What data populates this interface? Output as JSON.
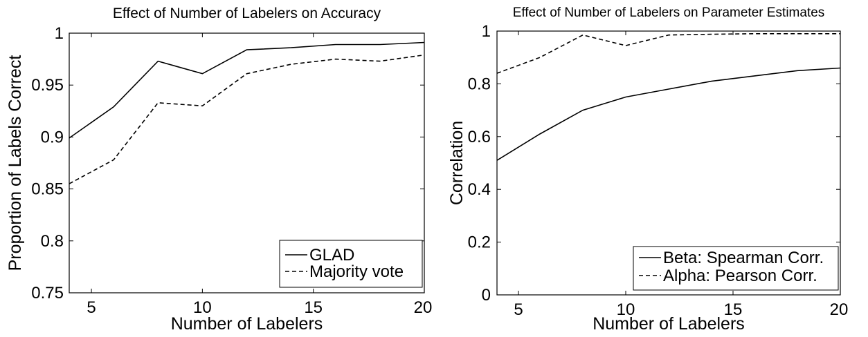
{
  "chart_data": [
    {
      "type": "line",
      "title": "Effect of Number of Labelers on Accuracy",
      "xlabel": "Number of Labelers",
      "ylabel": "Proportion of Labels Correct",
      "xlim": [
        4,
        20
      ],
      "ylim": [
        0.75,
        1.0
      ],
      "xticks": [
        5,
        10,
        15,
        20
      ],
      "yticks": [
        0.75,
        0.8,
        0.85,
        0.9,
        0.95,
        1
      ],
      "ytick_labels": [
        "0.75",
        "0.8",
        "0.85",
        "0.9",
        "0.95",
        "1"
      ],
      "x": [
        4,
        6,
        8,
        10,
        12,
        14,
        16,
        18,
        20
      ],
      "series": [
        {
          "name": "GLAD",
          "style": "solid",
          "values": [
            0.899,
            0.929,
            0.973,
            0.961,
            0.984,
            0.986,
            0.989,
            0.989,
            0.991
          ]
        },
        {
          "name": "Majority vote",
          "style": "dashed",
          "values": [
            0.855,
            0.878,
            0.933,
            0.93,
            0.961,
            0.97,
            0.975,
            0.973,
            0.979
          ]
        }
      ],
      "legend": "bottom-right",
      "grid": false
    },
    {
      "type": "line",
      "title": "Effect of Number of Labelers on Parameter Estimates",
      "xlabel": "Number of Labelers",
      "ylabel": "Correlation",
      "xlim": [
        4,
        20
      ],
      "ylim": [
        0,
        1
      ],
      "xticks": [
        5,
        10,
        15,
        20
      ],
      "yticks": [
        0,
        0.2,
        0.4,
        0.6,
        0.8,
        1
      ],
      "ytick_labels": [
        "0",
        "0.2",
        "0.4",
        "0.6",
        "0.8",
        "1"
      ],
      "x": [
        4,
        6,
        8,
        10,
        12,
        14,
        16,
        18,
        20
      ],
      "series": [
        {
          "name": "Beta: Spearman Corr.",
          "style": "solid",
          "values": [
            0.51,
            0.61,
            0.7,
            0.75,
            0.78,
            0.81,
            0.83,
            0.85,
            0.86
          ]
        },
        {
          "name": "Alpha: Pearson Corr.",
          "style": "dashed",
          "values": [
            0.84,
            0.9,
            0.985,
            0.945,
            0.985,
            0.988,
            0.99,
            0.99,
            0.99
          ]
        }
      ],
      "legend": "bottom-right",
      "grid": false
    }
  ]
}
